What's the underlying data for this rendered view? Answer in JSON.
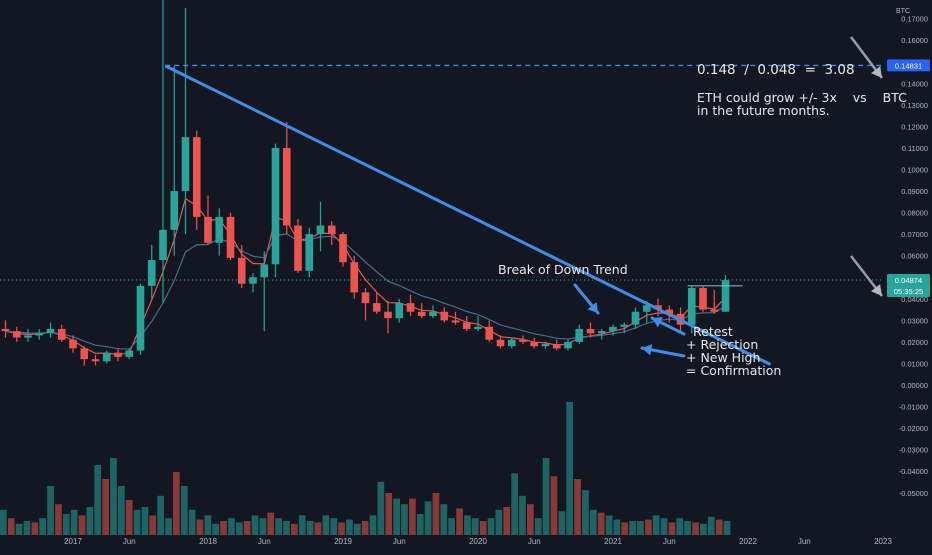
{
  "chart_data": {
    "type": "candlestick",
    "currency_label": "BTC",
    "colors": {
      "up": "#26a69a",
      "down": "#ef5350",
      "background": "#131722",
      "trendline": "#3d8ee8",
      "ema_fast": "#ef5350",
      "ema_slow": "#4a6b8a"
    },
    "grid": false,
    "ylim": [
      -0.055,
      0.18
    ],
    "y_ticks": [
      "0.17000",
      "0.16000",
      "0.15000",
      "0.14000",
      "0.13000",
      "0.12000",
      "0.11000",
      "0.10000",
      "0.09000",
      "0.08000",
      "0.07000",
      "0.06000",
      "0.05000",
      "0.04000",
      "0.03000",
      "0.02000",
      "0.01000",
      "0.00000",
      "-0.01000",
      "-0.02000",
      "-0.03000",
      "-0.04000",
      "-0.05000"
    ],
    "x_labels": [
      {
        "t": "2017",
        "month": 0
      },
      {
        "t": "Jun",
        "month": 5
      },
      {
        "t": "2018",
        "month": 12
      },
      {
        "t": "Jun",
        "month": 17
      },
      {
        "t": "2019",
        "month": 24
      },
      {
        "t": "Jun",
        "month": 29
      },
      {
        "t": "2020",
        "month": 36
      },
      {
        "t": "Jun",
        "month": 41
      },
      {
        "t": "2021",
        "month": 48
      },
      {
        "t": "Jun",
        "month": 53
      },
      {
        "t": "2022",
        "month": 60
      },
      {
        "t": "Jun",
        "month": 65
      },
      {
        "t": "2023",
        "month": 72
      }
    ],
    "candles": [
      {
        "m": -6,
        "o": 0.026,
        "h": 0.03,
        "l": 0.022,
        "c": 0.025
      },
      {
        "m": -5,
        "o": 0.025,
        "h": 0.027,
        "l": 0.02,
        "c": 0.022
      },
      {
        "m": -4,
        "o": 0.022,
        "h": 0.026,
        "l": 0.02,
        "c": 0.023
      },
      {
        "m": -3,
        "o": 0.023,
        "h": 0.026,
        "l": 0.021,
        "c": 0.024
      },
      {
        "m": -2,
        "o": 0.024,
        "h": 0.029,
        "l": 0.022,
        "c": 0.026
      },
      {
        "m": -1,
        "o": 0.026,
        "h": 0.028,
        "l": 0.02,
        "c": 0.021
      },
      {
        "m": 0,
        "o": 0.021,
        "h": 0.023,
        "l": 0.015,
        "c": 0.017
      },
      {
        "m": 1,
        "o": 0.017,
        "h": 0.018,
        "l": 0.009,
        "c": 0.012
      },
      {
        "m": 2,
        "o": 0.012,
        "h": 0.014,
        "l": 0.009,
        "c": 0.011
      },
      {
        "m": 3,
        "o": 0.011,
        "h": 0.016,
        "l": 0.01,
        "c": 0.015
      },
      {
        "m": 4,
        "o": 0.015,
        "h": 0.017,
        "l": 0.011,
        "c": 0.013
      },
      {
        "m": 5,
        "o": 0.013,
        "h": 0.017,
        "l": 0.012,
        "c": 0.016
      },
      {
        "m": 6,
        "o": 0.016,
        "h": 0.047,
        "l": 0.014,
        "c": 0.046
      },
      {
        "m": 7,
        "o": 0.046,
        "h": 0.065,
        "l": 0.04,
        "c": 0.058
      },
      {
        "m": 8,
        "o": 0.058,
        "h": 0.18,
        "l": 0.038,
        "c": 0.072
      },
      {
        "m": 9,
        "o": 0.072,
        "h": 0.148,
        "l": 0.06,
        "c": 0.09
      },
      {
        "m": 10,
        "o": 0.09,
        "h": 0.175,
        "l": 0.07,
        "c": 0.115
      },
      {
        "m": 11,
        "o": 0.115,
        "h": 0.118,
        "l": 0.072,
        "c": 0.078
      },
      {
        "m": 12,
        "o": 0.078,
        "h": 0.088,
        "l": 0.065,
        "c": 0.066
      },
      {
        "m": 13,
        "o": 0.066,
        "h": 0.082,
        "l": 0.06,
        "c": 0.078
      },
      {
        "m": 14,
        "o": 0.078,
        "h": 0.08,
        "l": 0.058,
        "c": 0.059
      },
      {
        "m": 15,
        "o": 0.059,
        "h": 0.065,
        "l": 0.045,
        "c": 0.047
      },
      {
        "m": 16,
        "o": 0.047,
        "h": 0.052,
        "l": 0.043,
        "c": 0.05
      },
      {
        "m": 17,
        "o": 0.05,
        "h": 0.062,
        "l": 0.025,
        "c": 0.056
      },
      {
        "m": 18,
        "o": 0.056,
        "h": 0.112,
        "l": 0.05,
        "c": 0.11
      },
      {
        "m": 19,
        "o": 0.11,
        "h": 0.122,
        "l": 0.07,
        "c": 0.074
      },
      {
        "m": 20,
        "o": 0.074,
        "h": 0.077,
        "l": 0.052,
        "c": 0.053
      },
      {
        "m": 21,
        "o": 0.053,
        "h": 0.073,
        "l": 0.05,
        "c": 0.07
      },
      {
        "m": 22,
        "o": 0.07,
        "h": 0.085,
        "l": 0.062,
        "c": 0.074
      },
      {
        "m": 23,
        "o": 0.074,
        "h": 0.076,
        "l": 0.065,
        "c": 0.07
      },
      {
        "m": 24,
        "o": 0.07,
        "h": 0.071,
        "l": 0.055,
        "c": 0.057
      },
      {
        "m": 25,
        "o": 0.057,
        "h": 0.06,
        "l": 0.04,
        "c": 0.043
      },
      {
        "m": 26,
        "o": 0.043,
        "h": 0.045,
        "l": 0.03,
        "c": 0.038
      },
      {
        "m": 27,
        "o": 0.038,
        "h": 0.043,
        "l": 0.033,
        "c": 0.034
      },
      {
        "m": 28,
        "o": 0.034,
        "h": 0.039,
        "l": 0.024,
        "c": 0.031
      },
      {
        "m": 29,
        "o": 0.031,
        "h": 0.04,
        "l": 0.029,
        "c": 0.038
      },
      {
        "m": 30,
        "o": 0.038,
        "h": 0.042,
        "l": 0.032,
        "c": 0.034
      },
      {
        "m": 31,
        "o": 0.034,
        "h": 0.038,
        "l": 0.031,
        "c": 0.032
      },
      {
        "m": 32,
        "o": 0.032,
        "h": 0.037,
        "l": 0.031,
        "c": 0.034
      },
      {
        "m": 33,
        "o": 0.034,
        "h": 0.036,
        "l": 0.029,
        "c": 0.03
      },
      {
        "m": 34,
        "o": 0.03,
        "h": 0.034,
        "l": 0.028,
        "c": 0.029
      },
      {
        "m": 35,
        "o": 0.029,
        "h": 0.032,
        "l": 0.025,
        "c": 0.026
      },
      {
        "m": 36,
        "o": 0.026,
        "h": 0.032,
        "l": 0.025,
        "c": 0.027
      },
      {
        "m": 37,
        "o": 0.027,
        "h": 0.03,
        "l": 0.02,
        "c": 0.021
      },
      {
        "m": 38,
        "o": 0.021,
        "h": 0.023,
        "l": 0.017,
        "c": 0.018
      },
      {
        "m": 39,
        "o": 0.018,
        "h": 0.022,
        "l": 0.017,
        "c": 0.021
      },
      {
        "m": 40,
        "o": 0.021,
        "h": 0.023,
        "l": 0.019,
        "c": 0.02
      },
      {
        "m": 41,
        "o": 0.02,
        "h": 0.022,
        "l": 0.017,
        "c": 0.018
      },
      {
        "m": 42,
        "o": 0.018,
        "h": 0.02,
        "l": 0.017,
        "c": 0.019
      },
      {
        "m": 43,
        "o": 0.019,
        "h": 0.021,
        "l": 0.016,
        "c": 0.017
      },
      {
        "m": 44,
        "o": 0.017,
        "h": 0.021,
        "l": 0.016,
        "c": 0.02
      },
      {
        "m": 45,
        "o": 0.02,
        "h": 0.028,
        "l": 0.019,
        "c": 0.026
      },
      {
        "m": 46,
        "o": 0.026,
        "h": 0.029,
        "l": 0.022,
        "c": 0.024
      },
      {
        "m": 47,
        "o": 0.024,
        "h": 0.026,
        "l": 0.021,
        "c": 0.025
      },
      {
        "m": 48,
        "o": 0.025,
        "h": 0.028,
        "l": 0.023,
        "c": 0.027
      },
      {
        "m": 49,
        "o": 0.027,
        "h": 0.029,
        "l": 0.024,
        "c": 0.028
      },
      {
        "m": 50,
        "o": 0.028,
        "h": 0.036,
        "l": 0.026,
        "c": 0.034
      },
      {
        "m": 51,
        "o": 0.034,
        "h": 0.039,
        "l": 0.029,
        "c": 0.037
      },
      {
        "m": 52,
        "o": 0.037,
        "h": 0.04,
        "l": 0.032,
        "c": 0.035
      },
      {
        "m": 53,
        "o": 0.035,
        "h": 0.037,
        "l": 0.029,
        "c": 0.033
      },
      {
        "m": 54,
        "o": 0.033,
        "h": 0.036,
        "l": 0.025,
        "c": 0.028
      },
      {
        "m": 55,
        "o": 0.028,
        "h": 0.046,
        "l": 0.024,
        "c": 0.045
      },
      {
        "m": 56,
        "o": 0.045,
        "h": 0.046,
        "l": 0.034,
        "c": 0.035
      },
      {
        "m": 57,
        "o": 0.035,
        "h": 0.044,
        "l": 0.033,
        "c": 0.034
      },
      {
        "m": 58,
        "o": 0.034,
        "h": 0.051,
        "l": 0.034,
        "c": 0.0487
      }
    ],
    "volume_heights": [
      0.18,
      0.12,
      0.08,
      0.1,
      0.09,
      0.12,
      0.35,
      0.22,
      0.15,
      0.18,
      0.14,
      0.2,
      0.5,
      0.4,
      0.55,
      0.35,
      0.25,
      0.18,
      0.2,
      0.14,
      0.28,
      0.12,
      0.45,
      0.35,
      0.18,
      0.11,
      0.14,
      0.08,
      0.1,
      0.12,
      0.09,
      0.1,
      0.14,
      0.12,
      0.16,
      0.12,
      0.1,
      0.08,
      0.14,
      0.1,
      0.09,
      0.14,
      0.12,
      0.09,
      0.11,
      0.08,
      0.1,
      0.14,
      0.38,
      0.3,
      0.26,
      0.22,
      0.26,
      0.15,
      0.24,
      0.3,
      0.22,
      0.12,
      0.19,
      0.14,
      0.12,
      0.1,
      0.12,
      0.18,
      0.2,
      0.44,
      0.28,
      0.22,
      0.12,
      0.55,
      0.42,
      0.17,
      0.95,
      0.4,
      0.32,
      0.18,
      0.16,
      0.14,
      0.11,
      0.09,
      0.1,
      0.1,
      0.11,
      0.14,
      0.12,
      0.09,
      0.12,
      0.1,
      0.09,
      0.08,
      0.13,
      0.11,
      0.1
    ],
    "resistance_level": {
      "value": 0.14831,
      "label": "0.14831"
    },
    "current_price": {
      "value": 0.04874,
      "label": "0.04874",
      "countdown": "05:35:25"
    },
    "trendline": {
      "from": {
        "m": 8.2,
        "v": 0.1481
      },
      "to": {
        "m": 62,
        "v": 0.0095
      }
    },
    "annotations": {
      "ratio": "0.148  /  0.048  =  3.08",
      "forecast_line1": "ETH could grow +/- 3x    vs    BTC",
      "forecast_line2": "in the future months.",
      "break": "Break of Down Trend",
      "retest": "Retest",
      "rejection": "+ Rejection",
      "new_high": "+ New High",
      "confirmation": "= Confirmation"
    }
  }
}
